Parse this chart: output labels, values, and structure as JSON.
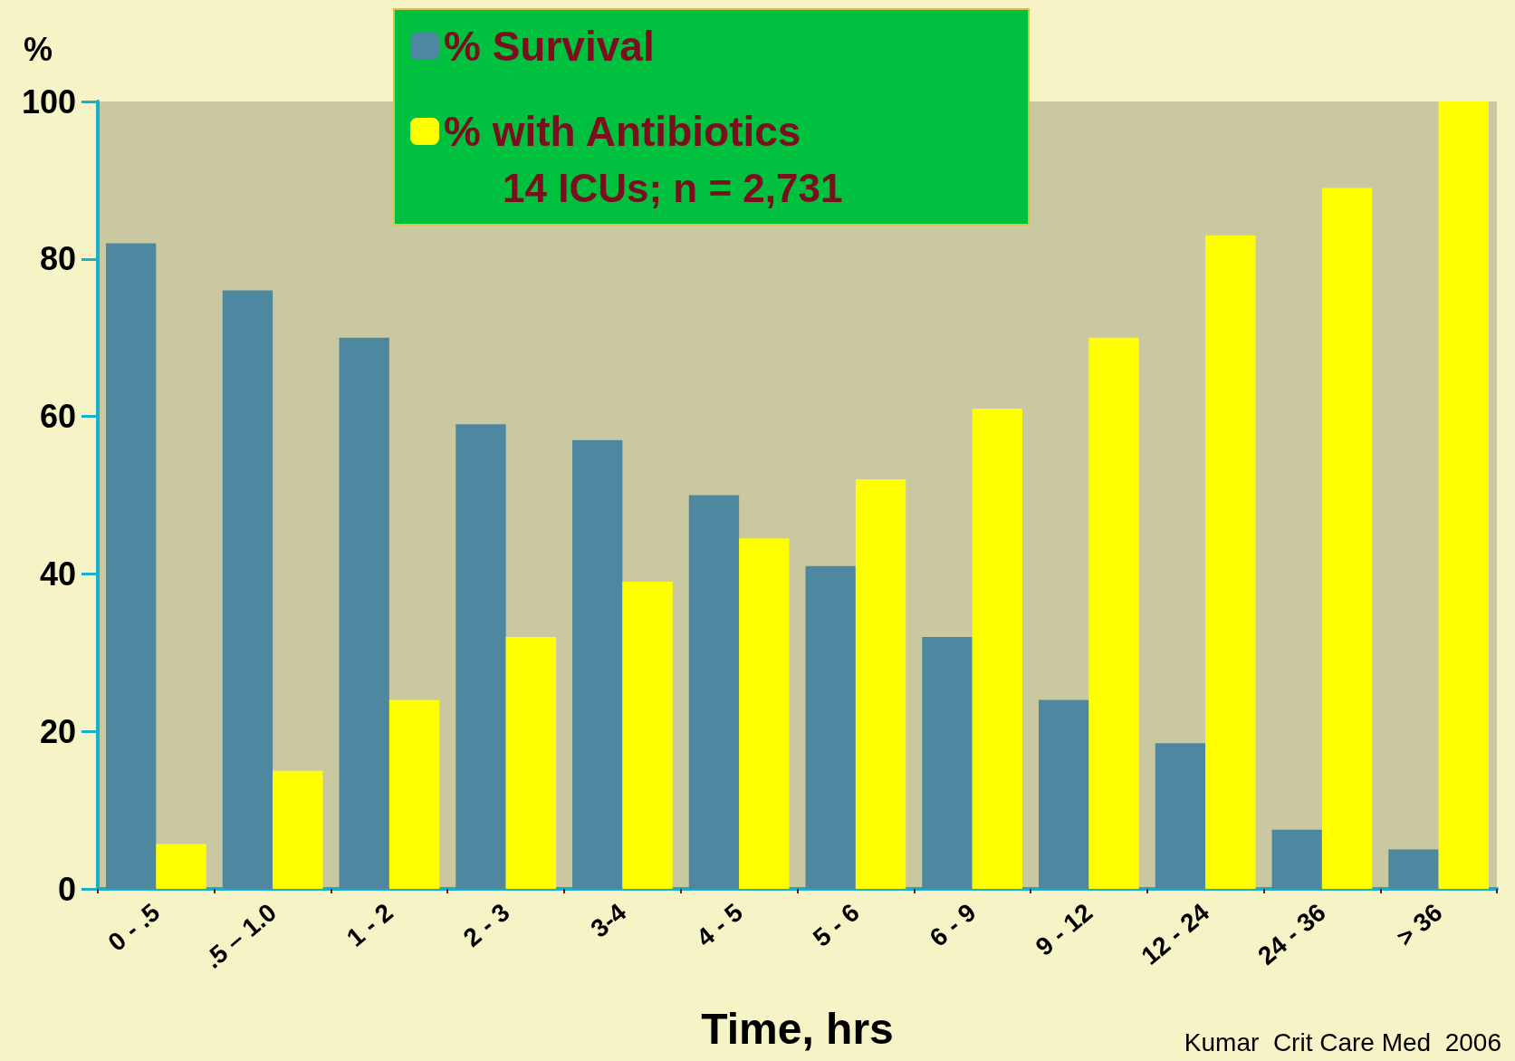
{
  "chart_data": {
    "type": "bar",
    "categories": [
      "0 - .5",
      ".5 – 1.0",
      "1 - 2",
      "2 - 3",
      "3-4",
      "4 - 5",
      "5 - 6",
      "6 - 9",
      "9 - 12",
      "12 - 24",
      "24 - 36",
      "> 36"
    ],
    "series": [
      {
        "name": "% Survival",
        "color": "#4e87a0",
        "values": [
          82,
          76,
          70,
          59,
          57,
          50,
          41,
          32,
          24,
          18.5,
          7.5,
          5
        ]
      },
      {
        "name": "% with Antibiotics",
        "color": "#ffff00",
        "values": [
          5.7,
          15,
          24,
          32,
          39,
          44.5,
          52,
          61,
          70,
          83,
          89,
          100
        ]
      }
    ],
    "ylabel": "%",
    "xlabel": "Time, hrs",
    "ylim": [
      0,
      100
    ],
    "yticks": [
      0,
      20,
      40,
      60,
      80,
      100
    ],
    "grid": false,
    "legend": "top",
    "annotations": [
      "14 ICUs; n = 2,731",
      "Kumar  Crit Care Med  2006"
    ]
  }
}
